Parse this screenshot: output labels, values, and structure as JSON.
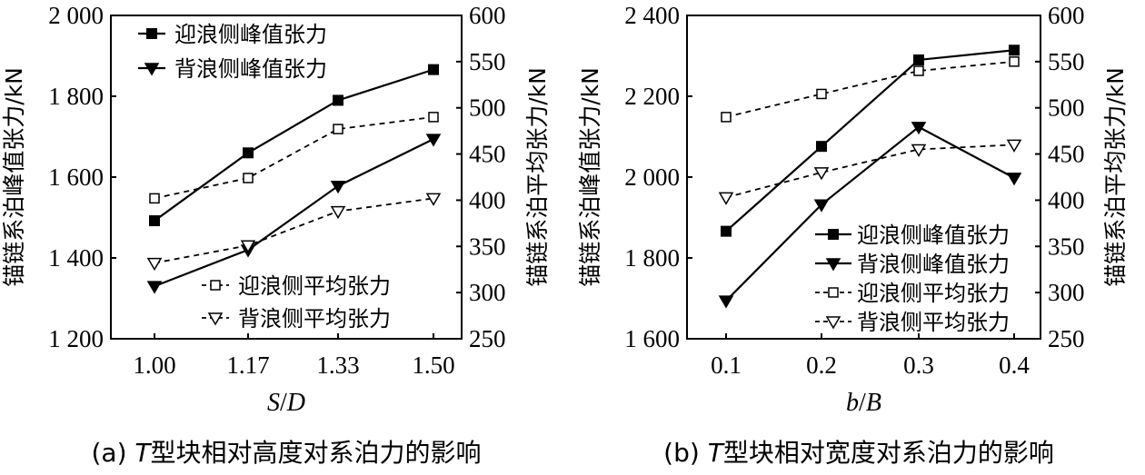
{
  "chart_data": [
    {
      "type": "line",
      "xlabel": "S/D",
      "categories": [
        "1.00",
        "1.17",
        "1.33",
        "1.50"
      ],
      "ylabel_left": "锚链系泊峰值张力/kN",
      "ylabel_right": "锚链系泊平均张力/kN",
      "ylim_left": [
        1200,
        2000
      ],
      "yticks_left": [
        "1 200",
        "1 400",
        "1 600",
        "1 800",
        "2 000"
      ],
      "ylim_right": [
        250,
        600
      ],
      "yticks_right": [
        "250",
        "300",
        "350",
        "400",
        "450",
        "500",
        "550",
        "600"
      ],
      "caption_prefix": "(a) ",
      "caption_italic": "T",
      "caption_rest": "型块相对高度对系泊力的影响",
      "series": [
        {
          "name": "迎浪侧峰值张力",
          "axis": "left",
          "marker": "square-filled",
          "dash": false,
          "values": [
            1492,
            1660,
            1790,
            1866
          ]
        },
        {
          "name": "背浪侧峰值张力",
          "axis": "left",
          "marker": "triangle-down-filled",
          "dash": false,
          "values": [
            1330,
            1420,
            1578,
            1694
          ]
        },
        {
          "name": "迎浪侧平均张力",
          "axis": "right",
          "marker": "square-open",
          "dash": true,
          "values": [
            402,
            424,
            477,
            490
          ]
        },
        {
          "name": "背浪侧平均张力",
          "axis": "right",
          "marker": "triangle-down-open",
          "dash": true,
          "values": [
            332,
            351,
            388,
            402
          ]
        }
      ]
    },
    {
      "type": "line",
      "xlabel": "b/B",
      "categories": [
        "0.1",
        "0.2",
        "0.3",
        "0.4"
      ],
      "ylabel_left": "锚链系泊峰值张力/kN",
      "ylabel_right": "锚链系泊平均张力/kN",
      "ylim_left": [
        1600,
        2400
      ],
      "yticks_left": [
        "1 600",
        "1 800",
        "2 000",
        "2 200",
        "2 400"
      ],
      "ylim_right": [
        250,
        600
      ],
      "yticks_right": [
        "250",
        "300",
        "350",
        "400",
        "450",
        "500",
        "550",
        "600"
      ],
      "caption_prefix": "(b) ",
      "caption_italic": "T",
      "caption_rest": "型块相对宽度对系泊力的影响",
      "series": [
        {
          "name": "迎浪侧峰值张力",
          "axis": "left",
          "marker": "square-filled",
          "dash": false,
          "values": [
            1866,
            2076,
            2290,
            2314
          ]
        },
        {
          "name": "背浪侧峰值张力",
          "axis": "left",
          "marker": "triangle-down-filled",
          "dash": false,
          "values": [
            1694,
            1932,
            2124,
            1998
          ]
        },
        {
          "name": "迎浪侧平均张力",
          "axis": "right",
          "marker": "square-open",
          "dash": true,
          "values": [
            490,
            515,
            540,
            550
          ]
        },
        {
          "name": "背浪侧平均张力",
          "axis": "right",
          "marker": "triangle-down-open",
          "dash": true,
          "values": [
            403,
            430,
            455,
            460
          ]
        }
      ]
    }
  ]
}
